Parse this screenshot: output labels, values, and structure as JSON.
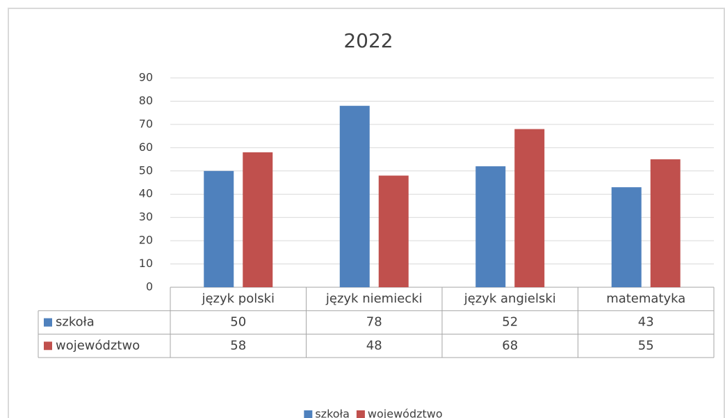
{
  "chart_data": {
    "type": "bar",
    "title": "2022",
    "categories": [
      "język polski",
      "język niemiecki",
      "język angielski",
      "matematyka"
    ],
    "series": [
      {
        "name": "szkoła",
        "color": "#4f81bd",
        "values": [
          50,
          78,
          52,
          43
        ]
      },
      {
        "name": "województwo",
        "color": "#c0504d",
        "values": [
          58,
          48,
          68,
          55
        ]
      }
    ],
    "ylim": [
      0,
      90
    ],
    "yticks": [
      0,
      10,
      20,
      30,
      40,
      50,
      60,
      70,
      80,
      90
    ],
    "grid": true,
    "legend": "bottom"
  }
}
